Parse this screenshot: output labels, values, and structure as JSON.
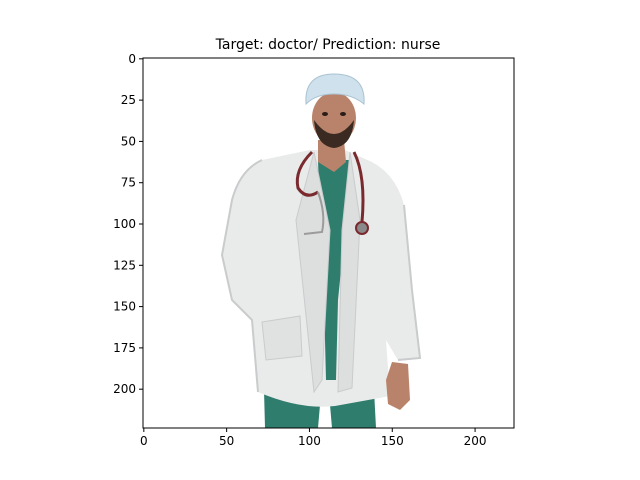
{
  "chart_data": {
    "type": "image",
    "title": "Target: doctor/ Prediction: nurse",
    "xlabel": "",
    "ylabel": "",
    "xlim": [
      -0.5,
      223.5
    ],
    "ylim": [
      223.5,
      -0.5
    ],
    "x_ticks": [
      0,
      50,
      100,
      150,
      200
    ],
    "y_ticks": [
      0,
      25,
      50,
      75,
      100,
      125,
      150,
      175,
      200
    ],
    "grid": false,
    "image_subject": "doctor-in-white-coat-with-stethoscope",
    "colors": {
      "background": "#ffffff",
      "coat": "#e9eaea",
      "scrubs": "#2f7d6d",
      "skin": "#b9826a",
      "cap": "#cfe1ec",
      "stethoscope": "#7a2a2e"
    }
  }
}
